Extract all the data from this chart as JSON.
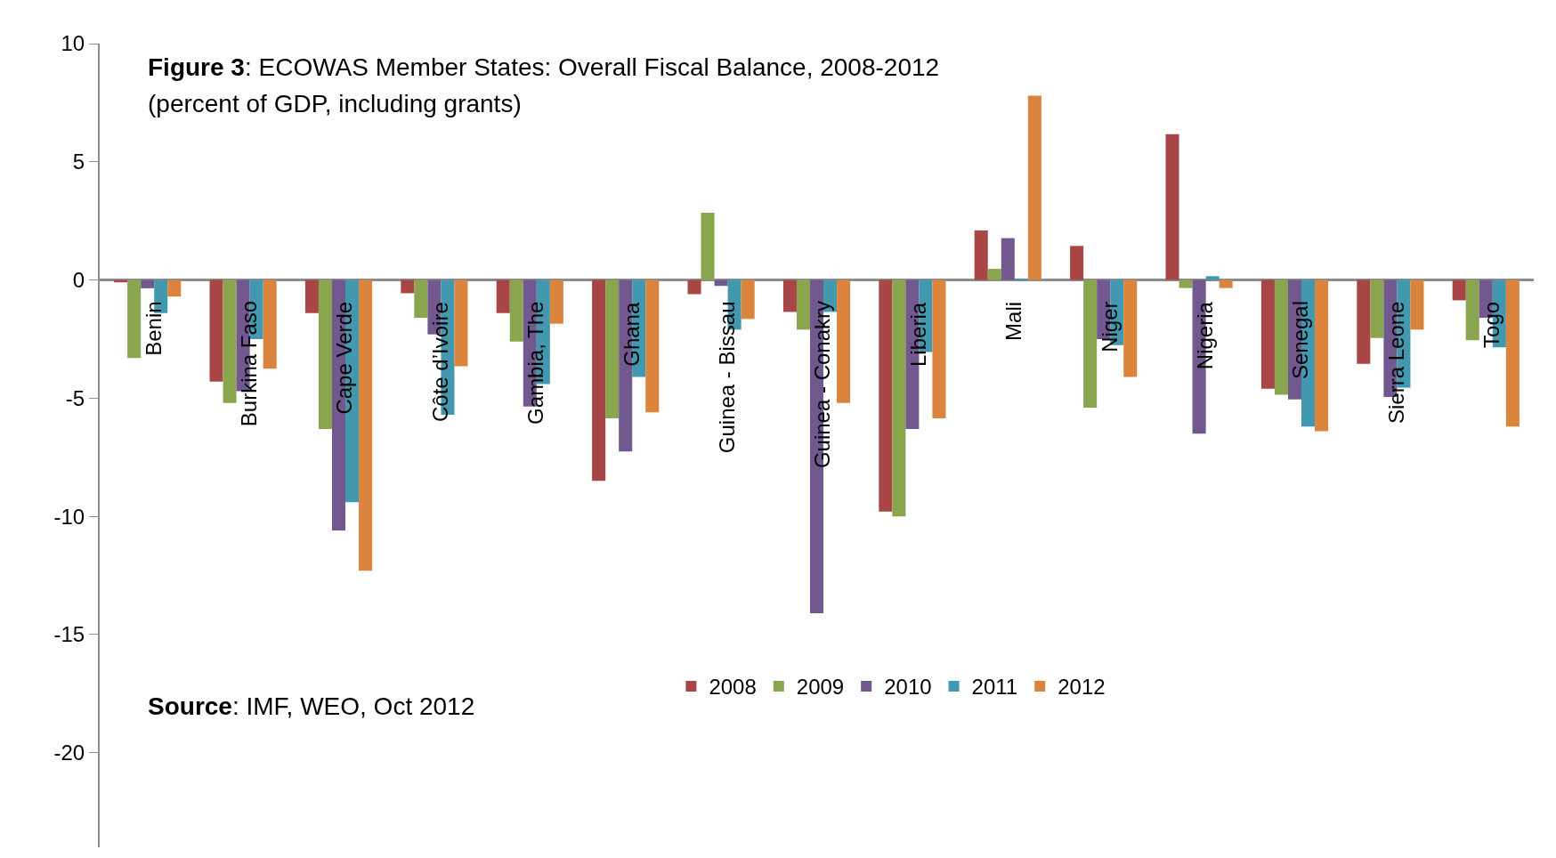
{
  "chart_data": {
    "type": "bar",
    "title": "Figure 3: ECOWAS Member States: Overall Fiscal Balance, 2008-2012",
    "subtitle": "(percent of GDP, including grants)",
    "annotations": [
      "Source: IMF, WEO, Oct 2012"
    ],
    "categories": [
      "Benin",
      "Burkina Faso",
      "Cape Verde",
      "Côte d’Ivoire",
      "Gambia, The",
      "Ghana",
      "Guinea - Bissau",
      "Guinea - Conakry",
      "Liberia",
      "Mali",
      "Niger",
      "Nigeria",
      "Senegal",
      "Sierra Leone",
      "Togo"
    ],
    "series": [
      {
        "name": "2008",
        "color": "#a84545",
        "values": [
          -0.1,
          -4.3,
          -1.4,
          -0.56,
          -1.4,
          -8.5,
          -0.6,
          -1.35,
          -9.8,
          2.1,
          1.44,
          6.17,
          -4.6,
          -3.55,
          -0.86
        ]
      },
      {
        "name": "2009",
        "color": "#89a54e",
        "values": [
          -3.3,
          -5.2,
          -6.3,
          -1.6,
          -2.6,
          -5.85,
          2.85,
          -2.1,
          -10.0,
          0.47,
          -5.4,
          -0.34,
          -4.85,
          -2.45,
          -2.55
        ]
      },
      {
        "name": "2010",
        "color": "#71588f",
        "values": [
          -0.35,
          -4.7,
          -10.6,
          -2.3,
          -5.35,
          -7.25,
          -0.25,
          -14.1,
          -6.3,
          1.77,
          -2.5,
          -6.5,
          -5.05,
          -4.95,
          -1.6
        ]
      },
      {
        "name": "2011",
        "color": "#4198af",
        "values": [
          -1.4,
          -2.5,
          -9.4,
          -5.7,
          -4.4,
          -4.1,
          -2.1,
          -1.35,
          -3.05,
          0.03,
          -2.75,
          0.16,
          -6.2,
          -4.55,
          -2.85
        ]
      },
      {
        "name": "2012",
        "color": "#db843d",
        "values": [
          -0.7,
          -3.75,
          -12.3,
          -3.65,
          -1.85,
          -5.6,
          -1.65,
          -5.2,
          -5.85,
          7.8,
          -4.1,
          -0.34,
          -6.4,
          -2.1,
          -6.2
        ]
      }
    ],
    "ylim": [
      -24,
      10
    ],
    "yticks": [
      -20,
      -15,
      -10,
      -5,
      0,
      5,
      10
    ],
    "legend": "bottom"
  }
}
